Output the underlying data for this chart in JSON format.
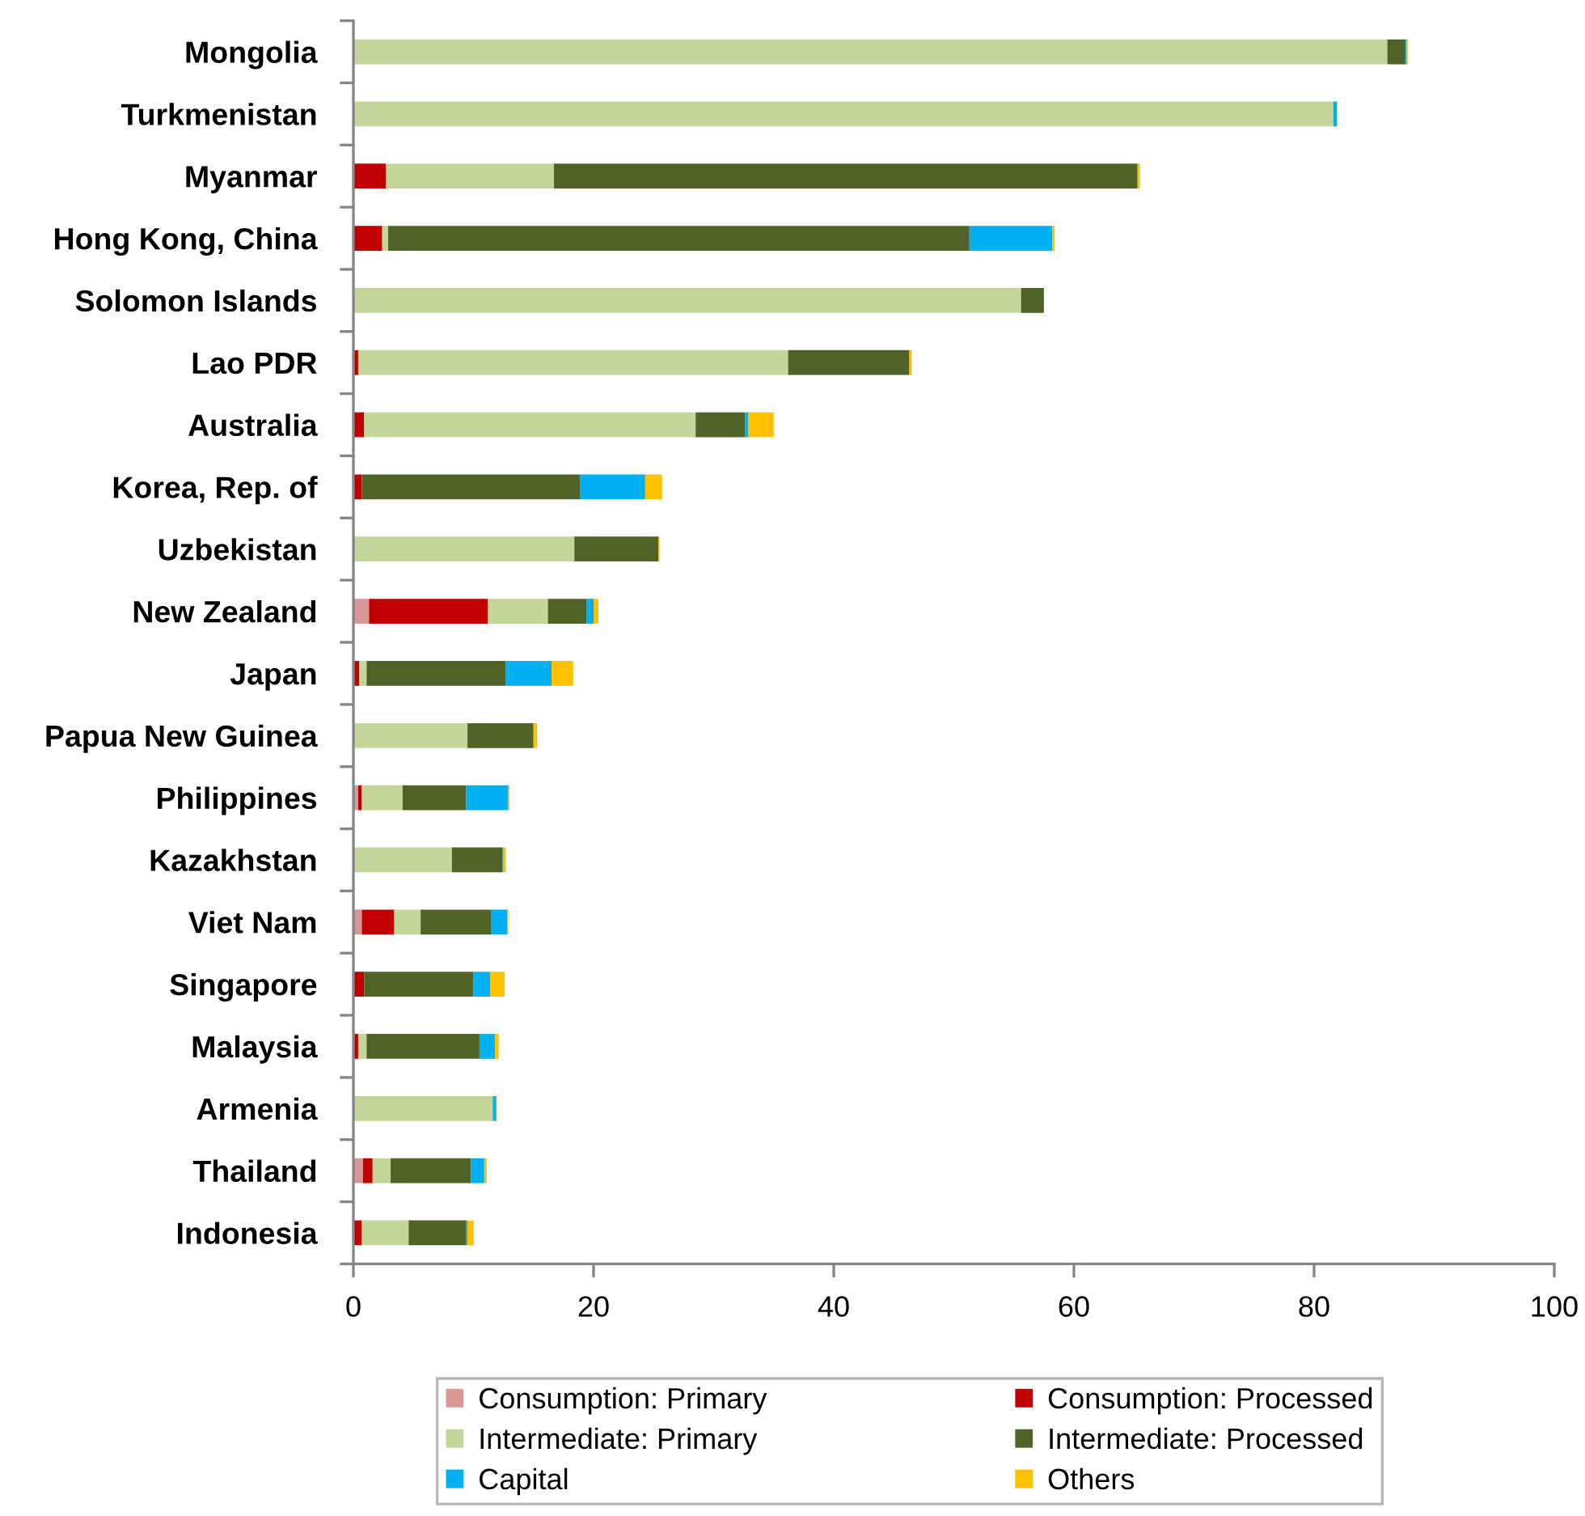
{
  "chart_data": {
    "type": "bar",
    "orientation": "horizontal",
    "stacked": true,
    "categories": [
      "Mongolia",
      "Turkmenistan",
      "Myanmar",
      "Hong Kong, China",
      "Solomon Islands",
      "Lao PDR",
      "Australia",
      "Korea, Rep. of",
      "Uzbekistan",
      "New Zealand",
      "Japan",
      "Papua New Guinea",
      "Philippines",
      "Kazakhstan",
      "Viet Nam",
      "Singapore",
      "Malaysia",
      "Armenia",
      "Thailand",
      "Indonesia"
    ],
    "series": [
      {
        "name": "Consumption: Primary",
        "color": "#d99694",
        "values": [
          null,
          null,
          null,
          null,
          null,
          null,
          null,
          null,
          null,
          1.3,
          null,
          null,
          0.4,
          null,
          0.7,
          null,
          null,
          null,
          0.8,
          null
        ]
      },
      {
        "name": "Consumption: Processed",
        "color": "#c00000",
        "values": [
          null,
          null,
          2.7,
          2.4,
          null,
          0.4,
          0.9,
          0.7,
          null,
          9.9,
          0.5,
          null,
          0.3,
          null,
          2.7,
          0.9,
          0.4,
          null,
          0.8,
          0.7
        ]
      },
      {
        "name": "Intermediate: Primary",
        "color": "#c3d69b",
        "values": [
          86.1,
          81.6,
          14.0,
          0.5,
          55.6,
          35.8,
          27.6,
          null,
          18.4,
          5.0,
          0.6,
          9.5,
          3.4,
          8.2,
          2.2,
          null,
          0.7,
          11.6,
          1.5,
          3.9
        ]
      },
      {
        "name": "Intermediate: Processed",
        "color": "#4f6228",
        "values": [
          1.5,
          null,
          48.6,
          48.4,
          1.9,
          10.1,
          4.1,
          18.2,
          7.0,
          3.2,
          11.6,
          5.5,
          5.3,
          4.2,
          5.9,
          9.1,
          9.4,
          null,
          6.7,
          4.8
        ]
      },
      {
        "name": "Capital",
        "color": "#00b0f0",
        "values": [
          0.1,
          0.3,
          null,
          6.9,
          null,
          null,
          0.3,
          5.4,
          null,
          0.6,
          3.8,
          null,
          3.5,
          0.1,
          1.3,
          1.4,
          1.3,
          0.3,
          1.1,
          0.1
        ]
      },
      {
        "name": "Others",
        "color": "#ffc000",
        "values": [
          0.1,
          null,
          0.2,
          0.2,
          null,
          0.2,
          2.1,
          1.4,
          0.1,
          0.4,
          1.8,
          0.3,
          0.1,
          0.2,
          0.1,
          1.2,
          0.3,
          null,
          0.2,
          0.5
        ]
      }
    ],
    "xlim": [
      0,
      100
    ],
    "xticks": [
      0,
      20,
      40,
      60,
      80,
      100
    ],
    "grid": false,
    "legend": "bottom"
  }
}
